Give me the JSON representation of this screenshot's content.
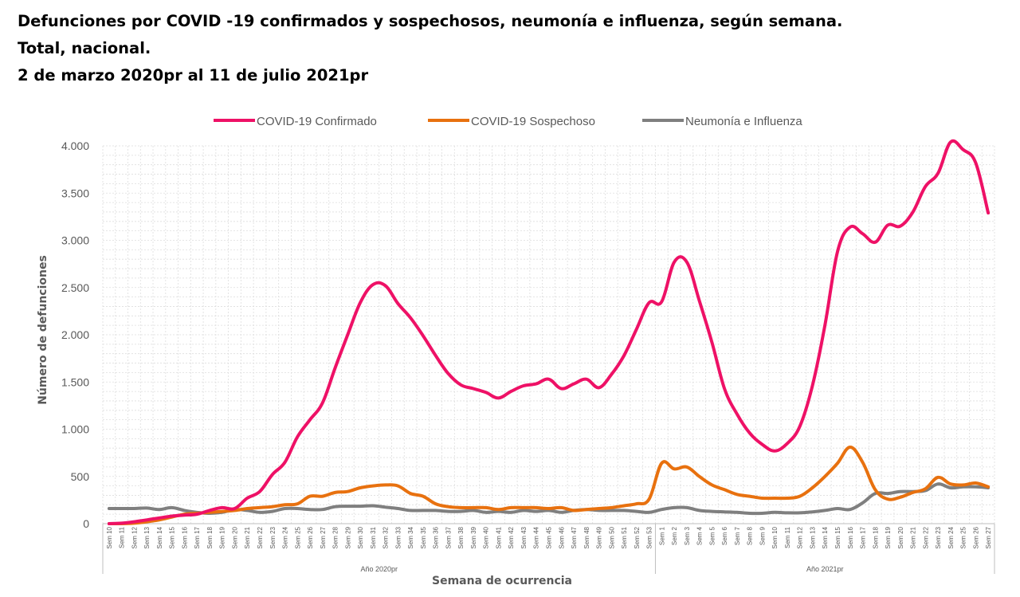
{
  "title": {
    "line1": "Defunciones por COVID -19 confirmados y sospechosos, neumonía e influenza, según semana.",
    "line2": "Total, nacional.",
    "line3": "2 de marzo 2020pr al 11 de julio 2021pr"
  },
  "chart_data": {
    "type": "line",
    "xlabel": "Semana de ocurrencia",
    "ylabel": "Número de defunciones",
    "ylim": [
      0,
      4000
    ],
    "yticks": [
      0,
      500,
      1000,
      1500,
      2000,
      2500,
      3000,
      3500,
      4000
    ],
    "ytick_labels": [
      "0",
      "500",
      "1.000",
      "1.500",
      "2.000",
      "2.500",
      "3.000",
      "3.500",
      "4.000"
    ],
    "groups": [
      {
        "label": "Año 2020pr",
        "count": 44
      },
      {
        "label": "Año 2021pr",
        "count": 27
      }
    ],
    "categories": [
      "Sem 10",
      "Sem 11",
      "Sem 12",
      "Sem 13",
      "Sem 14",
      "Sem 15",
      "Sem 16",
      "Sem 17",
      "Sem 18",
      "Sem 19",
      "Sem 20",
      "Sem 21",
      "Sem 22",
      "Sem 23",
      "Sem 24",
      "Sem 25",
      "Sem 26",
      "Sem 27",
      "Sem 28",
      "Sem 29",
      "Sem 30",
      "Sem 31",
      "Sem 32",
      "Sem 33",
      "Sem 34",
      "Sem 35",
      "Sem 36",
      "Sem 37",
      "Sem 38",
      "Sem 39",
      "Sem 40",
      "Sem 41",
      "Sem 42",
      "Sem 43",
      "Sem 44",
      "Sem 45",
      "Sem 46",
      "Sem 47",
      "Sem 48",
      "Sem 49",
      "Sem 50",
      "Sem 51",
      "Sem 52",
      "Sem 53",
      "Sem 1",
      "Sem 2",
      "Sem 3",
      "Sem 4",
      "Sem 5",
      "Sem 6",
      "Sem 7",
      "Sem 8",
      "Sem 9",
      "Sem 10",
      "Sem 11",
      "Sem 12",
      "Sem 13",
      "Sem 14",
      "Sem 15",
      "Sem 16",
      "Sem 17",
      "Sem 18",
      "Sem 19",
      "Sem 20",
      "Sem 21",
      "Sem 22",
      "Sem 23",
      "Sem 24",
      "Sem 25",
      "Sem 26",
      "Sem 27"
    ],
    "legend_position": "top-center",
    "grid": true,
    "series": [
      {
        "name": "COVID-19 Confirmado",
        "color": "#ee1166",
        "values": [
          0,
          5,
          20,
          40,
          60,
          80,
          90,
          100,
          140,
          170,
          160,
          270,
          340,
          520,
          650,
          920,
          1100,
          1280,
          1650,
          2000,
          2340,
          2530,
          2520,
          2330,
          2180,
          1990,
          1780,
          1590,
          1470,
          1430,
          1390,
          1330,
          1400,
          1460,
          1480,
          1530,
          1430,
          1480,
          1530,
          1440,
          1580,
          1780,
          2060,
          2340,
          2350,
          2770,
          2770,
          2360,
          1920,
          1430,
          1160,
          960,
          840,
          770,
          850,
          1030,
          1460,
          2100,
          2880,
          3140,
          3070,
          2980,
          3160,
          3150,
          3300,
          3570,
          3710,
          4040,
          3960,
          3820,
          3290
        ]
      },
      {
        "name": "COVID-19 Sospechoso",
        "color": "#e8710f",
        "values": [
          0,
          0,
          5,
          20,
          40,
          70,
          100,
          110,
          120,
          130,
          140,
          160,
          170,
          180,
          200,
          210,
          290,
          290,
          330,
          340,
          380,
          400,
          410,
          400,
          320,
          290,
          210,
          180,
          170,
          170,
          170,
          150,
          170,
          170,
          170,
          160,
          170,
          140,
          150,
          160,
          170,
          190,
          210,
          260,
          640,
          580,
          600,
          500,
          410,
          360,
          310,
          290,
          270,
          270,
          270,
          290,
          380,
          500,
          640,
          810,
          650,
          360,
          260,
          280,
          330,
          370,
          490,
          420,
          410,
          430,
          390
        ]
      },
      {
        "name": "Neumonía e Influenza",
        "color": "#7f7f7f",
        "values": [
          160,
          160,
          160,
          165,
          150,
          170,
          140,
          120,
          110,
          120,
          150,
          140,
          120,
          130,
          160,
          160,
          150,
          150,
          180,
          185,
          185,
          190,
          175,
          160,
          140,
          140,
          140,
          130,
          130,
          140,
          120,
          130,
          120,
          140,
          130,
          140,
          120,
          140,
          150,
          140,
          140,
          140,
          130,
          120,
          150,
          170,
          170,
          140,
          130,
          125,
          120,
          110,
          110,
          120,
          115,
          115,
          125,
          140,
          160,
          150,
          220,
          320,
          320,
          340,
          340,
          350,
          420,
          380,
          390,
          390,
          380
        ]
      }
    ]
  }
}
